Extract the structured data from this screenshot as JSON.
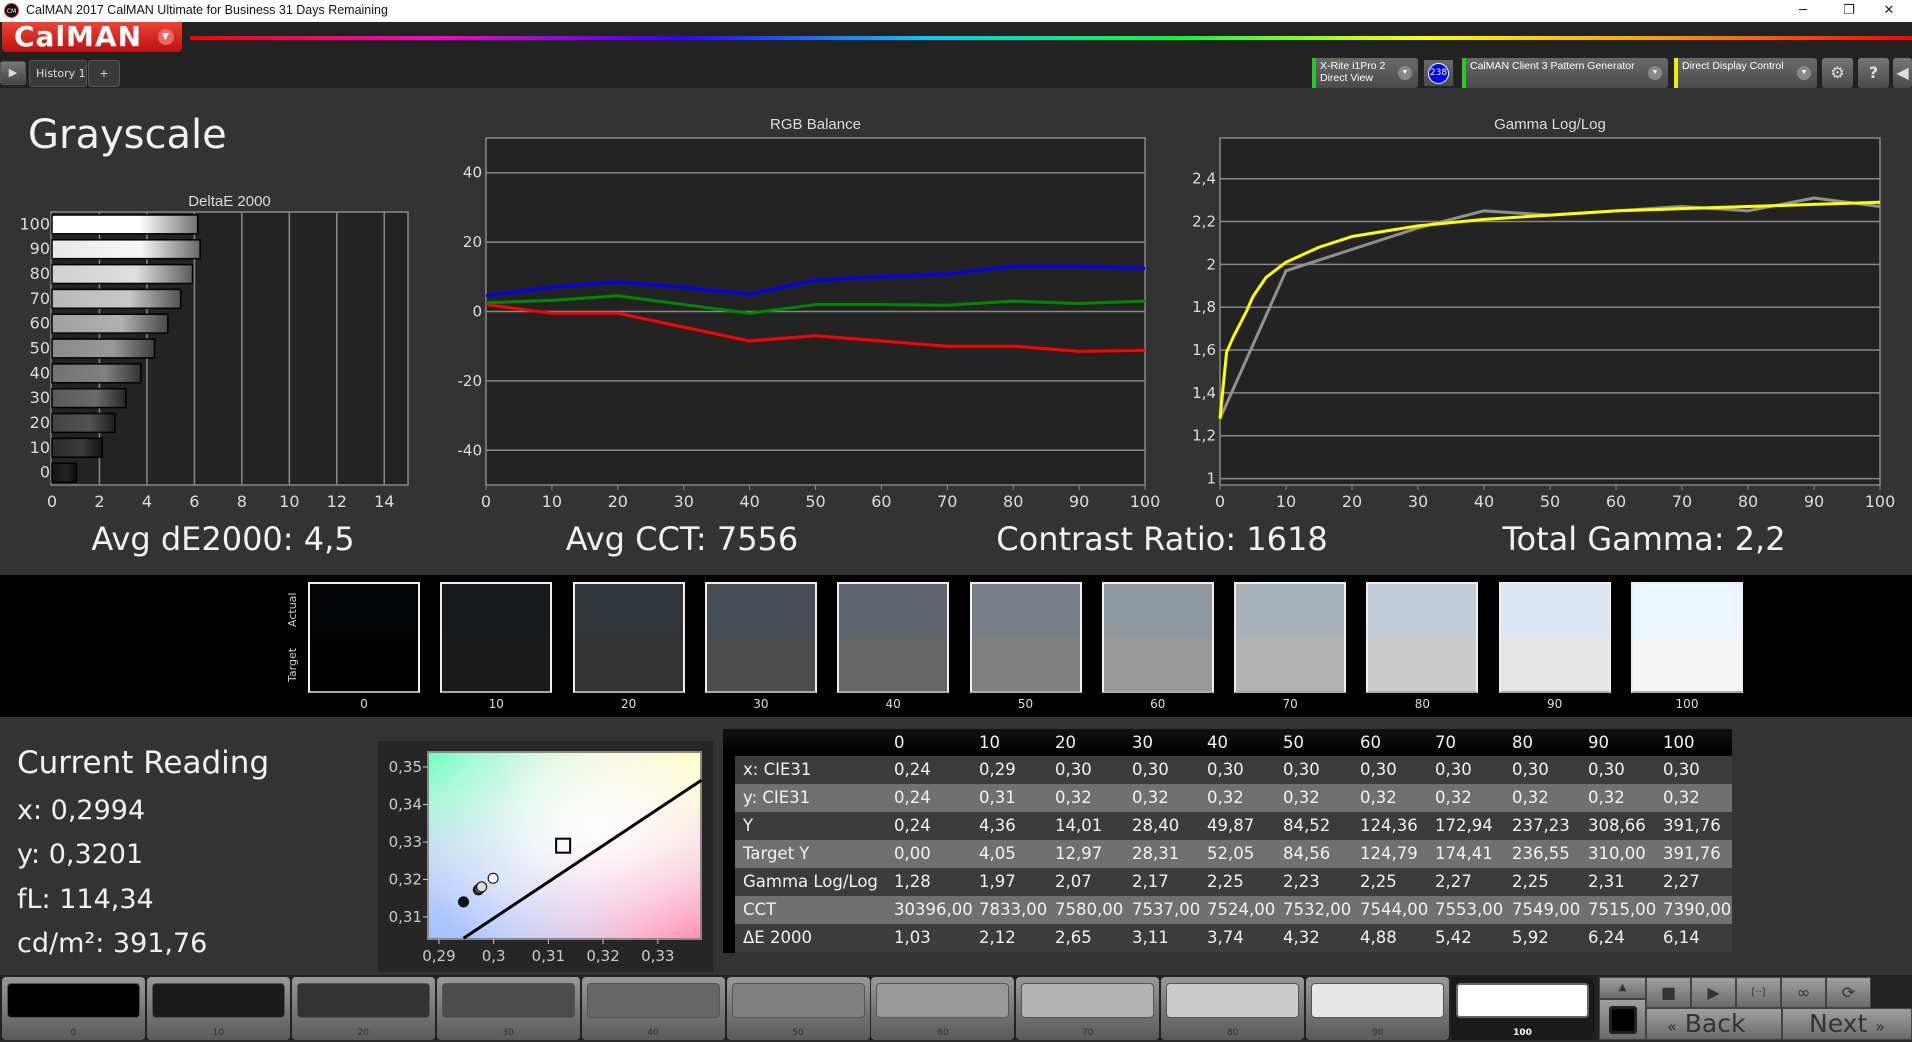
{
  "window": {
    "title": "CalMAN 2017 CalMAN Ultimate for Business 31 Days Remaining",
    "minimize": "─",
    "restore": "❐",
    "close": "✕",
    "app_icon": "CM"
  },
  "app": {
    "logo": "CalMAN",
    "logo_menu_icon": "chevron-down-icon"
  },
  "tabs": {
    "items": [
      {
        "label": "History 1"
      }
    ],
    "add": "+",
    "play": "▶"
  },
  "devices": {
    "meter": {
      "line1": "X-Rite i1Pro 2",
      "line2": "Direct View",
      "status_color": "#22cc22",
      "badge": "238"
    },
    "source": {
      "label": "CalMAN Client 3 Pattern Generator",
      "status_color": "#22cc22"
    },
    "display": {
      "label": "Direct Display Control",
      "status_color": "#eeee00"
    },
    "settings": "⚙",
    "help": "?",
    "collapse": "◀"
  },
  "page": {
    "title": "Grayscale"
  },
  "stats": {
    "avg_de": "Avg dE2000: 4,5",
    "avg_cct": "Avg CCT: 7556",
    "contrast": "Contrast Ratio: 1618",
    "gamma": "Total Gamma: 2,2"
  },
  "patches": {
    "actual_label": "Actual",
    "target_label": "Target",
    "items": [
      {
        "label": "0",
        "actual": "#030405",
        "target": "#000000"
      },
      {
        "label": "10",
        "actual": "#181b1e",
        "target": "#1b1b1b"
      },
      {
        "label": "20",
        "actual": "#30353a",
        "target": "#333333"
      },
      {
        "label": "30",
        "actual": "#484e55",
        "target": "#4d4d4d"
      },
      {
        "label": "40",
        "actual": "#5f656e",
        "target": "#666666"
      },
      {
        "label": "50",
        "actual": "#787e87",
        "target": "#808080"
      },
      {
        "label": "60",
        "actual": "#8f979f",
        "target": "#999999"
      },
      {
        "label": "70",
        "actual": "#a8b2ba",
        "target": "#b3b3b3"
      },
      {
        "label": "80",
        "actual": "#c2ced7",
        "target": "#cccccc"
      },
      {
        "label": "90",
        "actual": "#dae7f2",
        "target": "#e6e6e6"
      },
      {
        "label": "100",
        "actual": "#eaf5ff",
        "target": "#f5f5f5"
      }
    ]
  },
  "current_reading": {
    "title": "Current Reading",
    "x": "x: 0,2994",
    "y": "y: 0,3201",
    "fl": "fL: 114,34",
    "cdm2": "cd/m²: 391,76"
  },
  "table": {
    "columns": [
      "0",
      "10",
      "20",
      "30",
      "40",
      "50",
      "60",
      "70",
      "80",
      "90",
      "100"
    ],
    "rows": [
      {
        "label": "x: CIE31",
        "values": [
          "0,24",
          "0,29",
          "0,30",
          "0,30",
          "0,30",
          "0,30",
          "0,30",
          "0,30",
          "0,30",
          "0,30",
          "0,30"
        ]
      },
      {
        "label": "y: CIE31",
        "values": [
          "0,24",
          "0,31",
          "0,32",
          "0,32",
          "0,32",
          "0,32",
          "0,32",
          "0,32",
          "0,32",
          "0,32",
          "0,32"
        ]
      },
      {
        "label": "Y",
        "values": [
          "0,24",
          "4,36",
          "14,01",
          "28,40",
          "49,87",
          "84,52",
          "124,36",
          "172,94",
          "237,23",
          "308,66",
          "391,76"
        ]
      },
      {
        "label": "Target Y",
        "values": [
          "0,00",
          "4,05",
          "12,97",
          "28,31",
          "52,05",
          "84,56",
          "124,79",
          "174,41",
          "236,55",
          "310,00",
          "391,76"
        ]
      },
      {
        "label": "Gamma Log/Log",
        "values": [
          "1,28",
          "1,97",
          "2,07",
          "2,17",
          "2,25",
          "2,23",
          "2,25",
          "2,27",
          "2,25",
          "2,31",
          "2,27"
        ]
      },
      {
        "label": "CCT",
        "values": [
          "30396,00",
          "7833,00",
          "7580,00",
          "7537,00",
          "7524,00",
          "7532,00",
          "7544,00",
          "7553,00",
          "7549,00",
          "7515,00",
          "7390,00"
        ]
      },
      {
        "label": "ΔE 2000",
        "values": [
          "1,03",
          "2,12",
          "2,65",
          "3,11",
          "3,74",
          "4,32",
          "4,88",
          "5,42",
          "5,92",
          "6,24",
          "6,14"
        ]
      }
    ]
  },
  "swatches": {
    "selected": "100",
    "items": [
      {
        "label": "0",
        "color": "#000000"
      },
      {
        "label": "10",
        "color": "#1b1b1b"
      },
      {
        "label": "20",
        "color": "#333333"
      },
      {
        "label": "30",
        "color": "#4d4d4d"
      },
      {
        "label": "40",
        "color": "#666666"
      },
      {
        "label": "50",
        "color": "#808080"
      },
      {
        "label": "60",
        "color": "#999999"
      },
      {
        "label": "70",
        "color": "#b3b3b3"
      },
      {
        "label": "80",
        "color": "#cccccc"
      },
      {
        "label": "90",
        "color": "#e6e6e6"
      },
      {
        "label": "100",
        "color": "#ffffff"
      }
    ]
  },
  "controls": {
    "stop": "■",
    "play": "▶",
    "loop": "∞",
    "refresh": "⟳",
    "bracket": "[··]",
    "up": "▲",
    "back": "Back",
    "next": "Next",
    "back_icon": "«",
    "next_icon": "»"
  },
  "chart_data": [
    {
      "id": "deltae",
      "type": "bar",
      "orientation": "horizontal",
      "title": "DeltaE 2000",
      "categories": [
        "0",
        "10",
        "20",
        "30",
        "40",
        "50",
        "60",
        "70",
        "80",
        "90",
        "100"
      ],
      "values": [
        1.03,
        2.12,
        2.65,
        3.11,
        3.74,
        4.32,
        4.88,
        5.42,
        5.92,
        6.24,
        6.14
      ],
      "xlim": [
        0,
        15
      ],
      "xticks": [
        "0",
        "2",
        "4",
        "6",
        "8",
        "10",
        "12",
        "14"
      ],
      "grid": true
    },
    {
      "id": "rgb",
      "type": "line",
      "title": "RGB Balance",
      "x": [
        0,
        10,
        20,
        30,
        40,
        50,
        60,
        70,
        80,
        90,
        100
      ],
      "series": [
        {
          "color": "#ff0000",
          "values": [
            2,
            -0.5,
            -0.5,
            -4.5,
            -8.5,
            -7,
            -8.5,
            -10,
            -10,
            -11.5,
            -11.2
          ]
        },
        {
          "color": "#008800",
          "values": [
            2.5,
            3.2,
            4.5,
            2,
            -0.5,
            2,
            2,
            1.8,
            3,
            2.3,
            3
          ]
        },
        {
          "color": "#0000ff",
          "values": [
            4.5,
            7,
            8.5,
            7,
            5,
            9,
            10,
            10.8,
            13,
            13,
            12.4
          ]
        }
      ],
      "ylim": [
        -50,
        50
      ],
      "yticks": [
        "40",
        "20",
        "0",
        "-20",
        "-40"
      ],
      "xticks": [
        "0",
        "10",
        "20",
        "30",
        "40",
        "50",
        "60",
        "70",
        "80",
        "90",
        "100"
      ],
      "grid": true
    },
    {
      "id": "gamma",
      "type": "line",
      "title": "Gamma Log/Log",
      "series": [
        {
          "color": "#909090",
          "x": [
            0,
            10,
            20,
            30,
            40,
            50,
            60,
            70,
            80,
            90,
            100
          ],
          "values": [
            1.28,
            1.97,
            2.07,
            2.17,
            2.25,
            2.23,
            2.25,
            2.27,
            2.25,
            2.31,
            2.27
          ]
        },
        {
          "color": "#ffff00",
          "x": [
            0,
            1,
            2,
            4,
            5,
            7,
            10,
            15,
            20,
            30,
            40,
            50,
            60,
            70,
            80,
            90,
            100
          ],
          "values": [
            1.28,
            1.59,
            1.66,
            1.78,
            1.85,
            1.94,
            2.01,
            2.08,
            2.13,
            2.18,
            2.21,
            2.23,
            2.25,
            2.26,
            2.27,
            2.28,
            2.29
          ]
        }
      ],
      "xlim": [
        0,
        100
      ],
      "ylim": [
        0.97,
        2.59
      ],
      "yticks": [
        "2,4",
        "2,2",
        "2",
        "1,8",
        "1,6",
        "1,4",
        "1,2",
        "1"
      ],
      "xticks": [
        "0",
        "10",
        "20",
        "30",
        "40",
        "50",
        "60",
        "70",
        "80",
        "90",
        "100"
      ],
      "grid": true
    },
    {
      "id": "cie",
      "type": "scatter",
      "xlim": [
        0.288,
        0.3379
      ],
      "ylim": [
        0.3041,
        0.354
      ],
      "xticks": [
        "0,29",
        "0,3",
        "0,31",
        "0,32",
        "0,33"
      ],
      "yticks": [
        "0,35",
        "0,34",
        "0,33",
        "0,32",
        "0,31"
      ],
      "points": [
        {
          "x": 0.2945,
          "y": 0.314,
          "color": "#111111"
        },
        {
          "x": 0.2972,
          "y": 0.3172,
          "color": "#333333"
        },
        {
          "x": 0.2975,
          "y": 0.3176,
          "color": "#888888"
        },
        {
          "x": 0.2978,
          "y": 0.318,
          "color": "#dddddd"
        },
        {
          "x": 0.2999,
          "y": 0.3203,
          "color": "#ffffff"
        }
      ],
      "target": {
        "x": 0.3127,
        "y": 0.329
      },
      "planckian": [
        [
          0.2945,
          0.3043
        ],
        [
          0.338,
          0.3465
        ]
      ]
    }
  ]
}
